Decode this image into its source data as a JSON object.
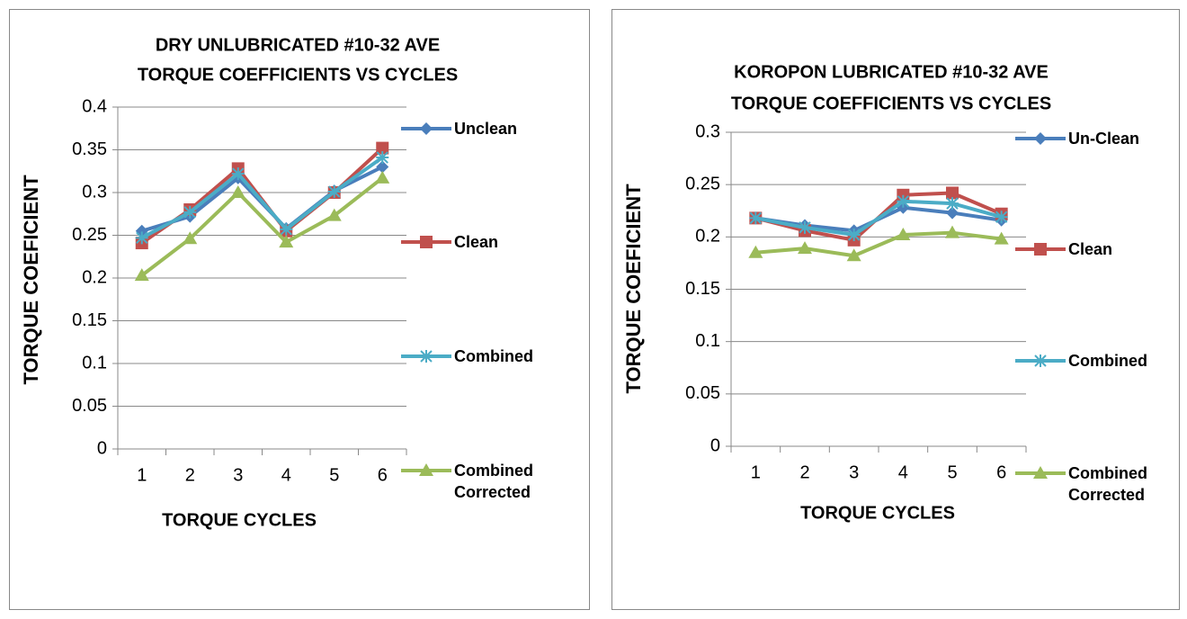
{
  "chart_data": [
    {
      "type": "line",
      "title": [
        "DRY UNLUBRICATED #10-32 AVE",
        "TORQUE COEFFICIENTS VS CYCLES"
      ],
      "x_label": "TORQUE CYCLES",
      "y_label": "TORQUE COEFICIENT",
      "categories": [
        "1",
        "2",
        "3",
        "4",
        "5",
        "6"
      ],
      "ylim": [
        0,
        0.4
      ],
      "yticks": [
        0,
        0.05,
        0.1,
        0.15,
        0.2,
        0.25,
        0.3,
        0.35,
        0.4
      ],
      "grid": true,
      "legend": "right",
      "series": [
        {
          "name": "Unclean",
          "color": "#4a7ebb",
          "marker": "diamond",
          "values": [
            0.255,
            0.272,
            0.317,
            0.258,
            0.302,
            0.33
          ]
        },
        {
          "name": "Clean",
          "color": "#c0504d",
          "marker": "square",
          "values": [
            0.241,
            0.28,
            0.328,
            0.255,
            0.3,
            0.352
          ]
        },
        {
          "name": "Combined",
          "color": "#4bacc6",
          "marker": "star",
          "values": [
            0.247,
            0.277,
            0.322,
            0.257,
            0.301,
            0.341
          ]
        },
        {
          "name": "Combined Corrected",
          "color": "#9bbb59",
          "marker": "triangle",
          "values": [
            0.203,
            0.246,
            0.3,
            0.242,
            0.273,
            0.317
          ]
        }
      ]
    },
    {
      "type": "line",
      "title": [
        "KOROPON LUBRICATED #10-32 AVE",
        "TORQUE COEFFICIENTS VS CYCLES"
      ],
      "x_label": "TORQUE CYCLES",
      "y_label": "TORQUE COEFICIENT",
      "categories": [
        "1",
        "2",
        "3",
        "4",
        "5",
        "6"
      ],
      "ylim": [
        0,
        0.3
      ],
      "yticks": [
        0,
        0.05,
        0.1,
        0.15,
        0.2,
        0.25,
        0.3
      ],
      "grid": true,
      "legend": "right",
      "series": [
        {
          "name": "Un-Clean",
          "color": "#4a7ebb",
          "marker": "diamond",
          "values": [
            0.218,
            0.211,
            0.206,
            0.228,
            0.223,
            0.216
          ]
        },
        {
          "name": "Clean",
          "color": "#c0504d",
          "marker": "square",
          "values": [
            0.218,
            0.206,
            0.197,
            0.24,
            0.242,
            0.222
          ]
        },
        {
          "name": "Combined",
          "color": "#4bacc6",
          "marker": "star",
          "values": [
            0.218,
            0.209,
            0.202,
            0.234,
            0.232,
            0.219
          ]
        },
        {
          "name": "Combined Corrected",
          "color": "#9bbb59",
          "marker": "triangle",
          "values": [
            0.185,
            0.189,
            0.182,
            0.202,
            0.204,
            0.198
          ]
        }
      ]
    }
  ]
}
